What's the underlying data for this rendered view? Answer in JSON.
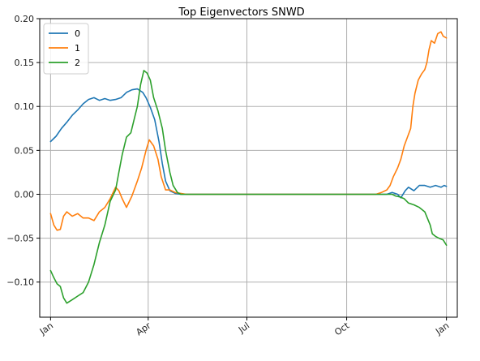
{
  "chart_data": {
    "type": "line",
    "title": "Top Eigenvectors SNWD",
    "xlabel": "",
    "ylabel": "",
    "x_ticks": [
      "Jan",
      "Apr",
      "Jul",
      "Oct",
      "Jan"
    ],
    "x_tick_days": [
      0,
      90,
      181,
      273,
      365
    ],
    "xlim": [
      -10,
      375
    ],
    "ylim": [
      -0.14,
      0.2
    ],
    "y_ticks": [
      -0.1,
      -0.05,
      0.0,
      0.05,
      0.1,
      0.15,
      0.2
    ],
    "y_tick_labels": [
      "−0.10",
      "−0.05",
      "0.00",
      "0.05",
      "0.10",
      "0.15",
      "0.20"
    ],
    "grid": true,
    "legend_position": "top-left",
    "series": [
      {
        "name": "0",
        "color": "#1f77b4",
        "points": [
          [
            0,
            0.06
          ],
          [
            5,
            0.066
          ],
          [
            10,
            0.075
          ],
          [
            15,
            0.082
          ],
          [
            20,
            0.09
          ],
          [
            25,
            0.096
          ],
          [
            30,
            0.103
          ],
          [
            35,
            0.108
          ],
          [
            40,
            0.11
          ],
          [
            45,
            0.107
          ],
          [
            50,
            0.109
          ],
          [
            55,
            0.107
          ],
          [
            60,
            0.108
          ],
          [
            65,
            0.11
          ],
          [
            70,
            0.116
          ],
          [
            75,
            0.119
          ],
          [
            80,
            0.12
          ],
          [
            85,
            0.116
          ],
          [
            88,
            0.11
          ],
          [
            92,
            0.099
          ],
          [
            96,
            0.085
          ],
          [
            100,
            0.06
          ],
          [
            103,
            0.035
          ],
          [
            106,
            0.015
          ],
          [
            110,
            0.004
          ],
          [
            115,
            0.001
          ],
          [
            120,
            0.0
          ],
          [
            125,
            0.0
          ],
          [
            150,
            0.0
          ],
          [
            180,
            0.0
          ],
          [
            210,
            0.0
          ],
          [
            240,
            0.0
          ],
          [
            270,
            0.0
          ],
          [
            300,
            0.0
          ],
          [
            310,
            0.0
          ],
          [
            315,
            0.002
          ],
          [
            320,
            0.0
          ],
          [
            323,
            -0.004
          ],
          [
            327,
            0.004
          ],
          [
            330,
            0.008
          ],
          [
            335,
            0.004
          ],
          [
            340,
            0.01
          ],
          [
            345,
            0.01
          ],
          [
            350,
            0.008
          ],
          [
            355,
            0.01
          ],
          [
            360,
            0.008
          ],
          [
            363,
            0.01
          ],
          [
            365,
            0.009
          ]
        ]
      },
      {
        "name": "1",
        "color": "#ff7f0e",
        "points": [
          [
            0,
            -0.022
          ],
          [
            3,
            -0.035
          ],
          [
            6,
            -0.041
          ],
          [
            9,
            -0.04
          ],
          [
            12,
            -0.025
          ],
          [
            15,
            -0.02
          ],
          [
            20,
            -0.025
          ],
          [
            25,
            -0.022
          ],
          [
            30,
            -0.027
          ],
          [
            35,
            -0.027
          ],
          [
            40,
            -0.03
          ],
          [
            45,
            -0.02
          ],
          [
            50,
            -0.015
          ],
          [
            55,
            -0.005
          ],
          [
            60,
            0.008
          ],
          [
            63,
            0.004
          ],
          [
            66,
            -0.005
          ],
          [
            70,
            -0.015
          ],
          [
            75,
            -0.002
          ],
          [
            80,
            0.015
          ],
          [
            84,
            0.03
          ],
          [
            88,
            0.05
          ],
          [
            91,
            0.062
          ],
          [
            95,
            0.055
          ],
          [
            99,
            0.04
          ],
          [
            102,
            0.02
          ],
          [
            106,
            0.005
          ],
          [
            110,
            0.005
          ],
          [
            115,
            0.002
          ],
          [
            120,
            0.001
          ],
          [
            125,
            0.0
          ],
          [
            150,
            0.0
          ],
          [
            180,
            0.0
          ],
          [
            210,
            0.0
          ],
          [
            240,
            0.0
          ],
          [
            270,
            0.0
          ],
          [
            290,
            0.0
          ],
          [
            300,
            0.0
          ],
          [
            305,
            0.002
          ],
          [
            310,
            0.005
          ],
          [
            313,
            0.01
          ],
          [
            316,
            0.02
          ],
          [
            320,
            0.03
          ],
          [
            323,
            0.04
          ],
          [
            326,
            0.055
          ],
          [
            329,
            0.065
          ],
          [
            332,
            0.075
          ],
          [
            334,
            0.1
          ],
          [
            336,
            0.115
          ],
          [
            339,
            0.13
          ],
          [
            342,
            0.137
          ],
          [
            345,
            0.142
          ],
          [
            347,
            0.15
          ],
          [
            349,
            0.165
          ],
          [
            351,
            0.175
          ],
          [
            354,
            0.172
          ],
          [
            357,
            0.183
          ],
          [
            360,
            0.185
          ],
          [
            362,
            0.18
          ],
          [
            365,
            0.178
          ]
        ]
      },
      {
        "name": "2",
        "color": "#2ca02c",
        "points": [
          [
            0,
            -0.087
          ],
          [
            3,
            -0.095
          ],
          [
            6,
            -0.102
          ],
          [
            9,
            -0.105
          ],
          [
            12,
            -0.118
          ],
          [
            15,
            -0.124
          ],
          [
            20,
            -0.12
          ],
          [
            25,
            -0.116
          ],
          [
            30,
            -0.112
          ],
          [
            35,
            -0.1
          ],
          [
            40,
            -0.08
          ],
          [
            45,
            -0.055
          ],
          [
            50,
            -0.035
          ],
          [
            55,
            -0.008
          ],
          [
            60,
            0.005
          ],
          [
            63,
            0.025
          ],
          [
            66,
            0.045
          ],
          [
            70,
            0.065
          ],
          [
            74,
            0.07
          ],
          [
            78,
            0.09
          ],
          [
            80,
            0.1
          ],
          [
            83,
            0.125
          ],
          [
            86,
            0.141
          ],
          [
            89,
            0.138
          ],
          [
            92,
            0.13
          ],
          [
            95,
            0.11
          ],
          [
            99,
            0.095
          ],
          [
            103,
            0.075
          ],
          [
            106,
            0.05
          ],
          [
            110,
            0.025
          ],
          [
            113,
            0.01
          ],
          [
            117,
            0.002
          ],
          [
            120,
            0.0
          ],
          [
            125,
            0.0
          ],
          [
            150,
            0.0
          ],
          [
            180,
            0.0
          ],
          [
            210,
            0.0
          ],
          [
            240,
            0.0
          ],
          [
            270,
            0.0
          ],
          [
            300,
            0.0
          ],
          [
            310,
            0.0
          ],
          [
            315,
            0.0
          ],
          [
            318,
            -0.002
          ],
          [
            322,
            -0.003
          ],
          [
            326,
            -0.005
          ],
          [
            330,
            -0.01
          ],
          [
            335,
            -0.012
          ],
          [
            340,
            -0.015
          ],
          [
            345,
            -0.02
          ],
          [
            350,
            -0.035
          ],
          [
            352,
            -0.045
          ],
          [
            355,
            -0.048
          ],
          [
            358,
            -0.05
          ],
          [
            362,
            -0.052
          ],
          [
            365,
            -0.058
          ]
        ]
      }
    ]
  }
}
